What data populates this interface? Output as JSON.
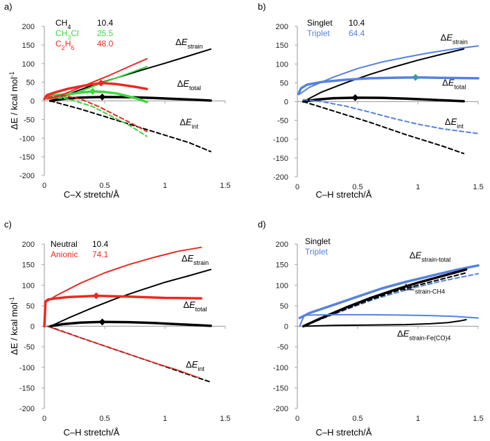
{
  "figure": {
    "y_axis_title_prefix": "ΔE / kcal mol",
    "y_axis_title_sup": "-1"
  },
  "colors": {
    "black": "#000000",
    "green": "#3fd43f",
    "red": "#ea2a22",
    "blue": "#5581e0",
    "teal": "#3d9ba6",
    "axis": "#a8a8a8"
  },
  "chart_data": [
    {
      "panel": "a)",
      "type": "line",
      "xlabel": "C–X stretch/Å",
      "ylabel": "ΔE / kcal mol-1",
      "xlim": [
        0,
        1.5
      ],
      "ylim": [
        -200,
        200
      ],
      "xticks": [
        "0",
        "0.5",
        "1",
        "1.5"
      ],
      "yticks": [
        "200",
        "150",
        "100",
        "50",
        "0",
        "-50",
        "-100",
        "-150",
        "-200"
      ],
      "legend": [
        {
          "name": "CH₄",
          "value": "10.4",
          "color": "black"
        },
        {
          "name": "CH₃Cl",
          "value": "25.5",
          "color": "green"
        },
        {
          "name": "C₂H₆",
          "value": "48.0",
          "color": "red"
        }
      ],
      "annotations": [
        {
          "base": "ΔE",
          "sub": "strain",
          "x": 1.2,
          "y": 150
        },
        {
          "base": "ΔE",
          "sub": "total",
          "x": 1.2,
          "y": 38
        },
        {
          "base": "ΔE",
          "sub": "int",
          "x": 1.2,
          "y": -65
        }
      ],
      "series": [
        {
          "name": "CH₄ strain",
          "color": "black",
          "style": "solid",
          "width": 2,
          "x": [
            0.05,
            0.2,
            0.4,
            0.6,
            0.8,
            1.0,
            1.2,
            1.38
          ],
          "y": [
            0,
            18,
            42,
            62,
            82,
            101,
            121,
            139
          ]
        },
        {
          "name": "CH₄ total",
          "color": "black",
          "style": "solid",
          "width": 3.5,
          "x": [
            0.05,
            0.15,
            0.3,
            0.48,
            0.7,
            0.9,
            1.1,
            1.25,
            1.38
          ],
          "y": [
            0,
            5,
            9,
            10.4,
            10,
            8,
            5,
            3,
            1
          ]
        },
        {
          "name": "CH₄ int",
          "color": "black",
          "style": "dashed",
          "width": 2,
          "x": [
            0.05,
            0.3,
            0.6,
            0.9,
            1.2,
            1.38
          ],
          "y": [
            0,
            -22,
            -52,
            -82,
            -112,
            -136
          ]
        },
        {
          "name": "CH₃Cl strain",
          "color": "green",
          "style": "solid",
          "width": 2,
          "x": [
            0.03,
            0.15,
            0.3,
            0.45,
            0.6,
            0.75,
            0.85
          ],
          "y": [
            5,
            10,
            25,
            45,
            62,
            80,
            92
          ]
        },
        {
          "name": "CH₃Cl total",
          "color": "green",
          "style": "solid",
          "width": 3.5,
          "x": [
            0.02,
            0.08,
            0.2,
            0.3,
            0.4,
            0.5,
            0.6,
            0.7,
            0.78,
            0.85
          ],
          "y": [
            10,
            15,
            18,
            22,
            25.5,
            24,
            20,
            12,
            5,
            -3
          ]
        },
        {
          "name": "CH₃Cl int",
          "color": "green",
          "style": "dashed",
          "width": 2,
          "x": [
            0.05,
            0.2,
            0.4,
            0.55,
            0.7,
            0.85
          ],
          "y": [
            10,
            5,
            -15,
            -40,
            -65,
            -95
          ]
        },
        {
          "name": "C₂H₆ strain",
          "color": "red",
          "style": "solid",
          "width": 2,
          "x": [
            0.02,
            0.1,
            0.25,
            0.4,
            0.55,
            0.7,
            0.85
          ],
          "y": [
            5,
            10,
            30,
            50,
            70,
            92,
            113
          ]
        },
        {
          "name": "C₂H₆ total",
          "color": "red",
          "style": "solid",
          "width": 3.5,
          "x": [
            0,
            0.02,
            0.08,
            0.2,
            0.35,
            0.47,
            0.6,
            0.75,
            0.85
          ],
          "y": [
            5,
            15,
            22,
            33,
            42,
            48,
            45,
            38,
            32
          ]
        },
        {
          "name": "C₂H₆ int",
          "color": "red",
          "style": "dashed",
          "width": 2,
          "x": [
            0.03,
            0.15,
            0.3,
            0.45,
            0.6,
            0.75,
            0.85
          ],
          "y": [
            10,
            15,
            5,
            -15,
            -40,
            -65,
            -82
          ]
        }
      ],
      "markers": [
        {
          "x": 0.48,
          "y": 10.4,
          "color": "black"
        },
        {
          "x": 0.4,
          "y": 25.5,
          "color": "green"
        },
        {
          "x": 0.47,
          "y": 48.0,
          "color": "red"
        }
      ]
    },
    {
      "panel": "b)",
      "type": "line",
      "xlabel": "C–H stretch/Å",
      "ylabel": "",
      "xlim": [
        0,
        1.5
      ],
      "ylim": [
        -200,
        200
      ],
      "xticks": [
        "0",
        "0.5",
        "1",
        "1.5"
      ],
      "yticks": [
        "200",
        "150",
        "100",
        "50",
        "0",
        "-50",
        "-100",
        "-150",
        "-200"
      ],
      "legend": [
        {
          "name": "Singlet",
          "value": "10.4",
          "color": "black"
        },
        {
          "name": "Triplet",
          "value": "64.4",
          "color": "blue"
        }
      ],
      "annotations": [
        {
          "base": "ΔE",
          "sub": "strain",
          "x": 1.3,
          "y": 162
        },
        {
          "base": "ΔE",
          "sub": "total",
          "x": 1.3,
          "y": 42
        },
        {
          "base": "ΔE",
          "sub": "int",
          "x": 1.3,
          "y": -62
        }
      ],
      "series": [
        {
          "name": "Triplet strain",
          "color": "blue",
          "style": "solid",
          "width": 2,
          "x": [
            0.02,
            0.1,
            0.3,
            0.5,
            0.7,
            0.9,
            1.1,
            1.3,
            1.5
          ],
          "y": [
            20,
            38,
            65,
            88,
            105,
            118,
            130,
            140,
            148
          ]
        },
        {
          "name": "Singlet strain",
          "color": "black",
          "style": "solid",
          "width": 2,
          "x": [
            0.05,
            0.2,
            0.4,
            0.6,
            0.8,
            1.0,
            1.2,
            1.38
          ],
          "y": [
            0,
            25,
            50,
            72,
            92,
            110,
            126,
            140
          ]
        },
        {
          "name": "Triplet total",
          "color": "blue",
          "style": "solid",
          "width": 3.5,
          "x": [
            0.01,
            0.03,
            0.08,
            0.2,
            0.4,
            0.6,
            0.8,
            1.0,
            1.2,
            1.5
          ],
          "y": [
            20,
            35,
            45,
            52,
            58,
            62,
            63.5,
            64.4,
            63,
            62
          ]
        },
        {
          "name": "Singlet total",
          "color": "black",
          "style": "solid",
          "width": 3.5,
          "x": [
            0.05,
            0.15,
            0.3,
            0.48,
            0.7,
            0.9,
            1.1,
            1.25,
            1.38
          ],
          "y": [
            0,
            5,
            9,
            10.4,
            10,
            8,
            5,
            3,
            1
          ]
        },
        {
          "name": "Triplet int",
          "color": "blue",
          "style": "dashed",
          "width": 2,
          "x": [
            0.05,
            0.2,
            0.4,
            0.6,
            0.8,
            1.0,
            1.2,
            1.38,
            1.5
          ],
          "y": [
            5,
            0,
            -12,
            -28,
            -45,
            -60,
            -72,
            -80,
            -85
          ]
        },
        {
          "name": "Singlet int",
          "color": "black",
          "style": "dashed",
          "width": 2,
          "x": [
            0.05,
            0.3,
            0.6,
            0.9,
            1.2,
            1.38
          ],
          "y": [
            0,
            -25,
            -55,
            -88,
            -118,
            -138
          ]
        }
      ],
      "markers": [
        {
          "x": 0.48,
          "y": 10.4,
          "color": "black"
        },
        {
          "x": 0.98,
          "y": 64.4,
          "color": "teal"
        }
      ]
    },
    {
      "panel": "c)",
      "type": "line",
      "xlabel": "C–H stretch/Å",
      "ylabel": "ΔE / kcal mol-1",
      "xlim": [
        0,
        1.5
      ],
      "ylim": [
        -200,
        200
      ],
      "xticks": [
        "0",
        "0.5",
        "1",
        "1.5"
      ],
      "yticks": [
        "200",
        "150",
        "100",
        "50",
        "0",
        "-50",
        "-100",
        "-150",
        "-200"
      ],
      "legend": [
        {
          "name": "Neutral",
          "value": "10.4",
          "color": "black"
        },
        {
          "name": "Anionic",
          "value": "74.1",
          "color": "red"
        }
      ],
      "annotations": [
        {
          "base": "ΔE",
          "sub": "strain",
          "x": 1.25,
          "y": 158
        },
        {
          "base": "ΔE",
          "sub": "total",
          "x": 1.25,
          "y": 45
        },
        {
          "base": "ΔE",
          "sub": "int",
          "x": 1.25,
          "y": -100
        }
      ],
      "series": [
        {
          "name": "Anionic strain",
          "color": "red",
          "style": "solid",
          "width": 2,
          "x": [
            0.02,
            0.1,
            0.3,
            0.5,
            0.7,
            0.9,
            1.1,
            1.3
          ],
          "y": [
            60,
            75,
            105,
            130,
            150,
            167,
            182,
            192
          ]
        },
        {
          "name": "Neutral strain",
          "color": "black",
          "style": "solid",
          "width": 2,
          "x": [
            0.05,
            0.2,
            0.4,
            0.6,
            0.8,
            1.0,
            1.2,
            1.38
          ],
          "y": [
            0,
            20,
            45,
            68,
            88,
            107,
            123,
            138
          ]
        },
        {
          "name": "Anionic total",
          "color": "red",
          "style": "solid",
          "width": 3.5,
          "x": [
            0,
            0.01,
            0.03,
            0.1,
            0.2,
            0.43,
            0.7,
            1.0,
            1.3
          ],
          "y": [
            0,
            60,
            65,
            68,
            71,
            74.1,
            72,
            69,
            68
          ]
        },
        {
          "name": "Neutral total",
          "color": "black",
          "style": "solid",
          "width": 3.5,
          "x": [
            0.05,
            0.15,
            0.3,
            0.48,
            0.7,
            0.9,
            1.1,
            1.25,
            1.38
          ],
          "y": [
            0,
            5,
            9,
            10.4,
            10,
            8,
            5,
            3,
            1
          ]
        },
        {
          "name": "Neutral int",
          "color": "black",
          "style": "dashed",
          "width": 2,
          "x": [
            0.03,
            0.3,
            0.6,
            0.9,
            1.2,
            1.38
          ],
          "y": [
            0,
            -28,
            -58,
            -88,
            -118,
            -136
          ]
        },
        {
          "name": "Anionic int",
          "color": "red",
          "style": "solid",
          "width": 1.5,
          "x": [
            0.02,
            0.3,
            0.6,
            0.9,
            1.1,
            1.28
          ],
          "y": [
            0,
            -28,
            -58,
            -88,
            -106,
            -125
          ]
        }
      ],
      "markers": [
        {
          "x": 0.48,
          "y": 10.4,
          "color": "black"
        },
        {
          "x": 0.43,
          "y": 74.1,
          "color": "red"
        }
      ]
    },
    {
      "panel": "d)",
      "type": "line",
      "xlabel": "C–H stretch/Å",
      "ylabel": "",
      "xlim": [
        0,
        1.5
      ],
      "ylim": [
        -200,
        200
      ],
      "xticks": [
        "0",
        "0.5",
        "1",
        "1.5"
      ],
      "yticks": [
        "200",
        "150",
        "100",
        "50",
        "0",
        "-50",
        "-100",
        "-150",
        "-200"
      ],
      "legend": [
        {
          "name": "Singlet",
          "value": "",
          "color": "black"
        },
        {
          "name": "Triplet",
          "value": "",
          "color": "blue"
        }
      ],
      "annotations": [
        {
          "base": "ΔE",
          "sub": "strain-total",
          "x": 1.1,
          "y": 165
        },
        {
          "base": "ΔE",
          "sub": "strain-CH4",
          "x": 1.05,
          "y": 88
        },
        {
          "base": "ΔE",
          "sub": "strain-Fe(CO)4",
          "x": 1.05,
          "y": -25
        }
      ],
      "series": [
        {
          "name": "Triplet strain-total",
          "color": "blue",
          "style": "solid",
          "width": 3.5,
          "x": [
            0.02,
            0.1,
            0.3,
            0.5,
            0.7,
            0.9,
            1.1,
            1.3,
            1.5
          ],
          "y": [
            20,
            32,
            52,
            72,
            92,
            108,
            122,
            136,
            148
          ]
        },
        {
          "name": "Singlet strain-total",
          "color": "black",
          "style": "solid",
          "width": 3.5,
          "x": [
            0.05,
            0.2,
            0.4,
            0.6,
            0.8,
            1.0,
            1.2,
            1.4
          ],
          "y": [
            0,
            20,
            45,
            68,
            88,
            106,
            122,
            138
          ]
        },
        {
          "name": "Triplet strain-CH4",
          "color": "blue",
          "style": "dashed",
          "width": 2,
          "x": [
            0.05,
            0.2,
            0.4,
            0.6,
            0.8,
            1.0,
            1.2,
            1.5
          ],
          "y": [
            0,
            18,
            40,
            62,
            80,
            96,
            110,
            128
          ]
        },
        {
          "name": "Singlet strain-CH4",
          "color": "black",
          "style": "dashed",
          "width": 2,
          "x": [
            0.05,
            0.2,
            0.4,
            0.6,
            0.8,
            1.0,
            1.2,
            1.4
          ],
          "y": [
            0,
            18,
            42,
            64,
            84,
            100,
            115,
            130
          ]
        },
        {
          "name": "Triplet strain-Fe(CO)4",
          "color": "blue",
          "style": "solid",
          "width": 2,
          "x": [
            0.02,
            0.04,
            0.06,
            0.3,
            0.6,
            0.9,
            1.1,
            1.3,
            1.5
          ],
          "y": [
            0,
            15,
            27,
            28,
            28,
            27,
            26,
            24,
            20
          ]
        },
        {
          "name": "Singlet strain-Fe(CO)4",
          "color": "black",
          "style": "solid",
          "width": 2,
          "x": [
            0.05,
            0.3,
            0.6,
            0.9,
            1.1,
            1.25,
            1.35,
            1.4
          ],
          "y": [
            0,
            2,
            3,
            4,
            6,
            9,
            13,
            16
          ]
        }
      ],
      "markers": []
    }
  ]
}
